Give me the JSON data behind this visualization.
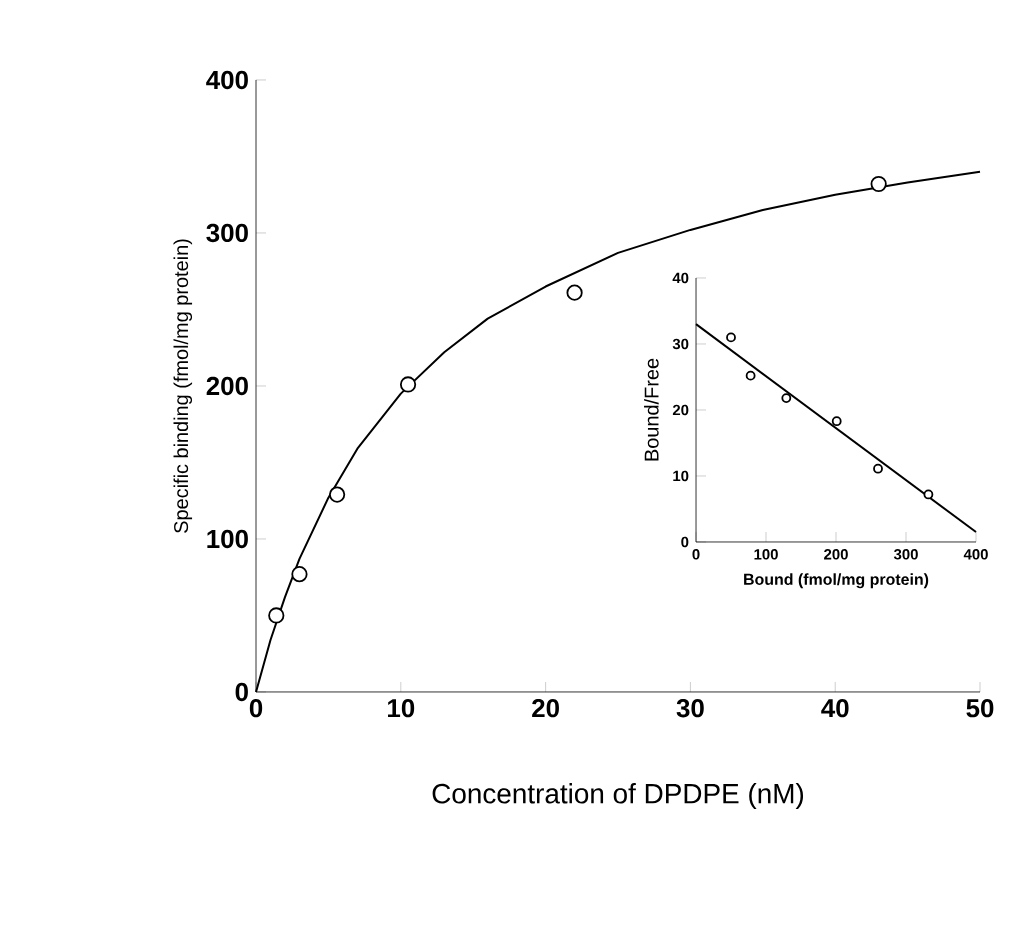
{
  "chart_data": [
    {
      "type": "scatter",
      "xlabel": "Concentration of DPDPE (nM)",
      "ylabel": "Specific binding (fmol/mg protein)",
      "xlim": [
        0,
        50
      ],
      "xticks": [
        0,
        10,
        20,
        30,
        40,
        50
      ],
      "ylim": [
        0,
        400
      ],
      "yticks": [
        0,
        100,
        200,
        300,
        400
      ],
      "grid": false,
      "series": [
        {
          "marker": "circle",
          "color": "#000000",
          "x": [
            1.4,
            3,
            5.6,
            10.5,
            22,
            43
          ],
          "values": [
            50,
            77,
            129,
            201,
            261,
            332
          ]
        },
        {
          "type": "line",
          "marker": "none",
          "color": "#000000",
          "x": [
            0,
            1,
            2,
            3,
            5,
            7,
            10,
            13,
            16,
            20,
            25,
            30,
            35,
            40,
            45,
            50
          ],
          "values": [
            0,
            34,
            62,
            87,
            127,
            159,
            195,
            222,
            244,
            265,
            287,
            302,
            315,
            325,
            333,
            340
          ]
        }
      ]
    },
    {
      "type": "scatter",
      "xlabel": "Bound (fmol/mg protein)",
      "ylabel": "Bound/Free",
      "xlim": [
        0,
        400
      ],
      "xticks": [
        0,
        100,
        200,
        300,
        400
      ],
      "ylim": [
        0,
        40
      ],
      "yticks": [
        0,
        10,
        20,
        30,
        40
      ],
      "grid": false,
      "series": [
        {
          "marker": "circle",
          "color": "#000000",
          "x": [
            50,
            78,
            129,
            201,
            260,
            332
          ],
          "values": [
            31,
            25.2,
            21.8,
            18.3,
            11.1,
            7.2
          ]
        },
        {
          "type": "line",
          "marker": "none",
          "color": "#000000",
          "x": [
            0,
            400
          ],
          "values": [
            33,
            1.5
          ]
        }
      ]
    }
  ]
}
